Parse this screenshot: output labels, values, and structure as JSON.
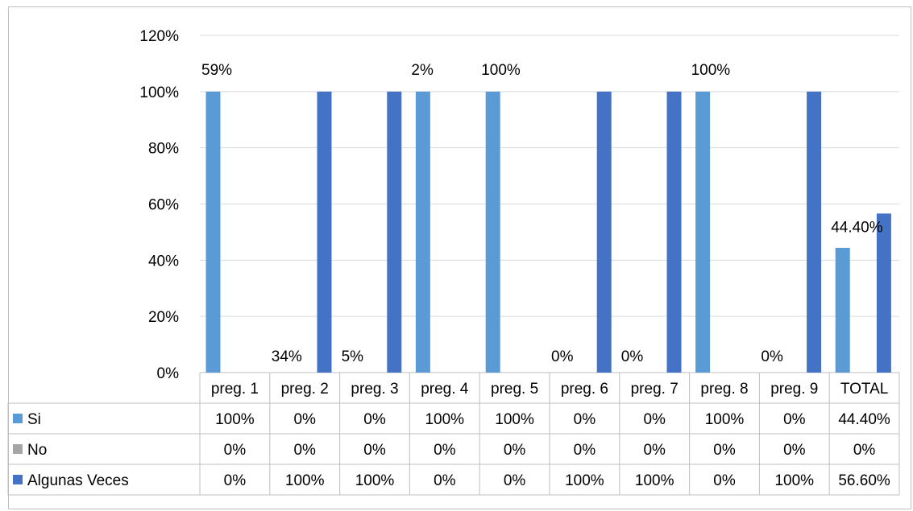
{
  "chart_data": {
    "type": "bar",
    "title": "",
    "xlabel": "",
    "ylabel": "",
    "ylim": [
      0,
      1.2
    ],
    "y_ticks": [
      "0%",
      "20%",
      "40%",
      "60%",
      "80%",
      "100%",
      "120%"
    ],
    "grid": true,
    "legend": "data-table-left",
    "categories": [
      "preg. 1",
      "preg. 2",
      "preg. 3",
      "preg. 4",
      "preg. 5",
      "preg. 6",
      "preg. 7",
      "preg. 8",
      "preg. 9",
      "TOTAL"
    ],
    "series": [
      {
        "name": "Si",
        "color": "#5b9bd5",
        "values": [
          1.0,
          0,
          0,
          1.0,
          1.0,
          0,
          0,
          1.0,
          0,
          0.444
        ],
        "table_labels": [
          "100%",
          "0%",
          "0%",
          "100%",
          "100%",
          "0%",
          "0%",
          "100%",
          "0%",
          "44.40%"
        ]
      },
      {
        "name": "No",
        "color": "#a5a5a5",
        "values": [
          0,
          0,
          0,
          0,
          0,
          0,
          0,
          0,
          0,
          0
        ],
        "table_labels": [
          "0%",
          "0%",
          "0%",
          "0%",
          "0%",
          "0%",
          "0%",
          "0%",
          "0%",
          "0%"
        ]
      },
      {
        "name": "Algunas Veces",
        "color": "#4472c4",
        "values": [
          0,
          1.0,
          1.0,
          0,
          0,
          1.0,
          1.0,
          0,
          1.0,
          0.566
        ],
        "table_labels": [
          "0%",
          "100%",
          "100%",
          "0%",
          "0%",
          "100%",
          "100%",
          "0%",
          "100%",
          "56.60%"
        ]
      }
    ],
    "annotations": [
      {
        "text": "59%",
        "category": "preg. 1",
        "y": 1.08
      },
      {
        "text": "34%",
        "category": "preg. 2",
        "y": 0.06
      },
      {
        "text": "5%",
        "category": "preg. 3",
        "y": 0.06
      },
      {
        "text": "2%",
        "category": "preg. 4",
        "y": 1.08
      },
      {
        "text": "100%",
        "category": "preg. 5",
        "y": 1.08
      },
      {
        "text": "0%",
        "category": "preg. 6",
        "y": 0.06
      },
      {
        "text": "0%",
        "category": "preg. 7",
        "y": 0.06
      },
      {
        "text": "100%",
        "category": "preg. 8",
        "y": 1.08
      },
      {
        "text": "0%",
        "category": "preg. 9",
        "y": 0.06
      },
      {
        "text": "44.40%",
        "category": "TOTAL",
        "y": 0.52
      }
    ]
  }
}
